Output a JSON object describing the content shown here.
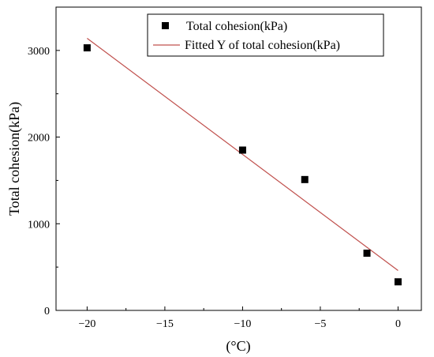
{
  "chart_data": {
    "type": "scatter",
    "title": "",
    "xlabel": "(°C)",
    "ylabel": "Total cohesion(kPa)",
    "xlim": [
      -22,
      1.5
    ],
    "ylim": [
      0,
      3500
    ],
    "x_ticks": [
      -20,
      -15,
      -10,
      -5,
      0
    ],
    "x_tick_labels": [
      "−20",
      "−15",
      "−10",
      "−5",
      "0"
    ],
    "y_ticks": [
      0,
      1000,
      2000,
      3000
    ],
    "y_tick_labels": [
      "0",
      "1000",
      "2000",
      "3000"
    ],
    "grid": false,
    "legend_position": "top-right",
    "series": [
      {
        "name": "Total cohesion(kPa)",
        "kind": "scatter",
        "marker": "square",
        "color": "#000000",
        "x": [
          -20,
          -10,
          -6,
          -2,
          0
        ],
        "y": [
          3030,
          1850,
          1510,
          660,
          330
        ]
      },
      {
        "name": "Fitted Y of total cohesion(kPa)",
        "kind": "line",
        "color": "#c0504d",
        "x": [
          -20,
          0
        ],
        "y": [
          3140,
          460
        ]
      }
    ]
  }
}
